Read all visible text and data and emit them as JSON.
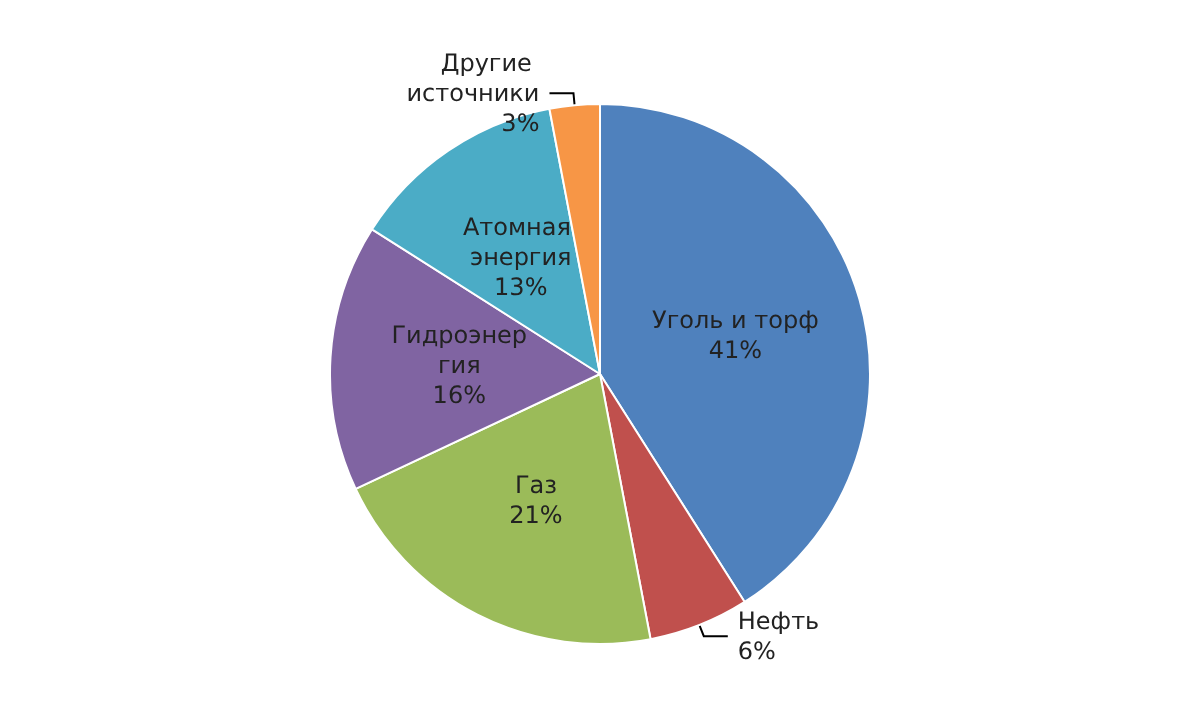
{
  "chart_data": {
    "type": "pie",
    "categories": [
      "Уголь и торф",
      "Нефть",
      "Газ",
      "Гидроэнергия",
      "Атомная энергия",
      "Другие источники"
    ],
    "values": [
      41,
      6,
      21,
      16,
      13,
      3
    ],
    "value_labels": [
      "41%",
      "6%",
      "21%",
      "16%",
      "13%",
      "3%"
    ],
    "colors": [
      "#4f81bd",
      "#c0504d",
      "#9bbb59",
      "#8064a2",
      "#4bacc6",
      "#f79646"
    ],
    "legend": false
  }
}
